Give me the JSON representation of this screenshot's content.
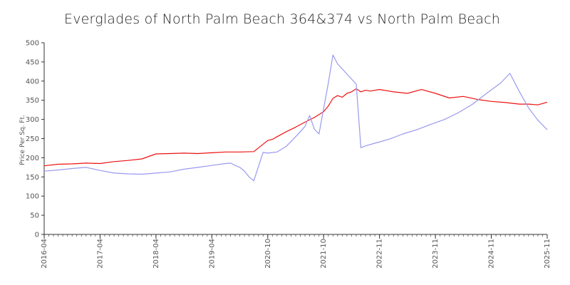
{
  "chart_data": {
    "type": "line",
    "title": "Everglades of North Palm Beach 364&374 vs North Palm Beach",
    "xlabel": "",
    "ylabel": "Price Per Sq. Ft.",
    "ylim": [
      0,
      500
    ],
    "y_ticks": [
      0,
      50,
      100,
      150,
      200,
      250,
      300,
      350,
      400,
      450,
      500
    ],
    "x_tick_labels": [
      "2016-04",
      "2017-04",
      "2018-04",
      "2019-04",
      "2020-10",
      "2021-10",
      "2022-11",
      "2023-11",
      "2024-11",
      "2025-11"
    ],
    "x_tick_positions": [
      0,
      12,
      24,
      36,
      48,
      60,
      72,
      84,
      96,
      108
    ],
    "grid": false,
    "legend": "none",
    "series": [
      {
        "color": "#ee1111",
        "x": [
          0,
          3,
          6,
          9,
          12,
          15,
          18,
          21,
          24,
          27,
          30,
          33,
          36,
          39,
          42,
          45,
          48,
          49,
          50,
          52,
          54,
          56,
          58,
          60,
          61,
          62,
          63,
          64,
          65,
          66,
          67,
          68,
          69,
          70,
          72,
          75,
          78,
          81,
          84,
          87,
          90,
          93,
          96,
          99,
          102,
          104,
          106,
          108
        ],
        "values": [
          179,
          183,
          184,
          186,
          185,
          190,
          193,
          197,
          210,
          211,
          212,
          211,
          213,
          215,
          215,
          216,
          245,
          248,
          255,
          268,
          280,
          293,
          305,
          320,
          335,
          355,
          362,
          358,
          368,
          372,
          380,
          372,
          376,
          374,
          378,
          372,
          368,
          378,
          368,
          356,
          360,
          352,
          347,
          344,
          340,
          340,
          338,
          345
        ]
      },
      {
        "color": "#9999ee",
        "x": [
          0,
          3,
          6,
          9,
          12,
          15,
          18,
          21,
          24,
          27,
          30,
          33,
          36,
          39,
          40,
          41,
          42,
          43,
          44,
          45,
          47,
          48,
          50,
          52,
          54,
          55,
          56,
          57,
          58,
          59,
          60,
          61,
          62,
          63,
          67,
          68,
          69,
          71,
          74,
          77,
          80,
          83,
          86,
          89,
          92,
          95,
          98,
          100,
          102,
          104,
          106,
          108
        ],
        "values": [
          165,
          168,
          172,
          175,
          167,
          160,
          158,
          157,
          160,
          163,
          170,
          175,
          180,
          185,
          186,
          180,
          175,
          165,
          150,
          140,
          214,
          212,
          215,
          230,
          255,
          268,
          282,
          310,
          275,
          262,
          328,
          395,
          468,
          445,
          392,
          226,
          231,
          238,
          248,
          262,
          273,
          287,
          300,
          318,
          340,
          368,
          395,
          420,
          373,
          330,
          298,
          273
        ]
      }
    ]
  }
}
